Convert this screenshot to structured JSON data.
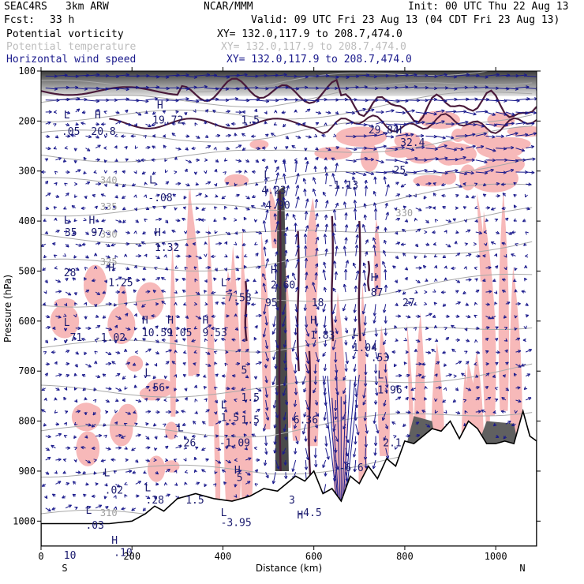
{
  "header": {
    "project": "SEAC4RS",
    "model": "3km ARW",
    "org": "NCAR/MMM",
    "init": "Init: 00 UTC Thu 22 Aug 13",
    "fcst_label": "Fcst:",
    "fcst_value": "33 h",
    "valid": "Valid: 09 UTC Fri 23 Aug 13 (04 CDT Fri 23 Aug 13)"
  },
  "legend": [
    {
      "label": "Potential vorticity",
      "xy": "XY= 132.0,117.9 to 208.7,474.0",
      "color": "#000000"
    },
    {
      "label": "Potential temperature",
      "xy": "XY= 132.0,117.9 to 208.7,474.0",
      "color": "#bdbdbd"
    },
    {
      "label": "Horizontal wind speed",
      "xy": "XY= 132.0,117.9 to 208.7,474.0",
      "color": "#1a1a8c"
    }
  ],
  "chart_data": {
    "type": "cross-section",
    "xlabel": "Distance (km)",
    "ylabel": "Pressure (hPa)",
    "xlim": [
      0,
      1090
    ],
    "ylim": [
      1050,
      100
    ],
    "x_ticks": [
      0,
      200,
      400,
      600,
      800,
      1000
    ],
    "y_ticks": [
      100,
      200,
      300,
      400,
      500,
      600,
      700,
      800,
      900,
      1000
    ],
    "x_end_labels": {
      "left": "S",
      "right": "N"
    },
    "colors": {
      "pv_shade": "#f7b9b9",
      "wind": "#1a1a8c",
      "theta": "#a8a8a8",
      "terrain": "#000000"
    },
    "theta_contours": [
      {
        "label": "340",
        "x": 130,
        "p": 325
      },
      {
        "label": "335",
        "x": 130,
        "p": 378
      },
      {
        "label": "330",
        "x": 130,
        "p": 433
      },
      {
        "label": "330",
        "x": 780,
        "p": 390
      },
      {
        "label": "325",
        "x": 130,
        "p": 488
      },
      {
        "label": "310",
        "x": 130,
        "p": 990
      }
    ],
    "field_labels": [
      {
        "t": "L",
        "x": 50,
        "p": 195
      },
      {
        "t": ".05",
        "x": 45,
        "p": 228
      },
      {
        "t": "H",
        "x": 118,
        "p": 195
      },
      {
        "t": "20.8",
        "x": 110,
        "p": 228
      },
      {
        "t": "H",
        "x": 255,
        "p": 175
      },
      {
        "t": "19.72",
        "x": 245,
        "p": 205
      },
      {
        "t": "1.5",
        "x": 440,
        "p": 205
      },
      {
        "t": "L",
        "x": 238,
        "p": 325
      },
      {
        "t": "-.08",
        "x": 235,
        "p": 360
      },
      {
        "t": "L",
        "x": 490,
        "p": 315
      },
      {
        "t": "4.23",
        "x": 485,
        "p": 345
      },
      {
        "t": "-4.90",
        "x": 480,
        "p": 375
      },
      {
        "t": "-1.13",
        "x": 630,
        "p": 335
      },
      {
        "t": "29.84",
        "x": 720,
        "p": 225
      },
      {
        "t": "H",
        "x": 780,
        "p": 225
      },
      {
        "t": "32.4",
        "x": 790,
        "p": 250
      },
      {
        "t": "25",
        "x": 775,
        "p": 305
      },
      {
        "t": "L",
        "x": 50,
        "p": 405
      },
      {
        "t": "35",
        "x": 52,
        "p": 430
      },
      {
        "t": "H",
        "x": 105,
        "p": 405
      },
      {
        "t": "97",
        "x": 110,
        "p": 430
      },
      {
        "t": "H",
        "x": 250,
        "p": 430
      },
      {
        "t": "1.32",
        "x": 250,
        "p": 460
      },
      {
        "t": "28",
        "x": 50,
        "p": 510
      },
      {
        "t": "H",
        "x": 148,
        "p": 500
      },
      {
        "t": "1.25",
        "x": 148,
        "p": 530
      },
      {
        "t": "L",
        "x": 395,
        "p": 530
      },
      {
        "t": "-7.58",
        "x": 395,
        "p": 560
      },
      {
        "t": "H",
        "x": 505,
        "p": 505
      },
      {
        "t": "2.60",
        "x": 505,
        "p": 535
      },
      {
        "t": "95",
        "x": 493,
        "p": 570
      },
      {
        "t": "H",
        "x": 725,
        "p": 520
      },
      {
        "t": "87",
        "x": 725,
        "p": 550
      },
      {
        "t": "18",
        "x": 595,
        "p": 570
      },
      {
        "t": "27",
        "x": 795,
        "p": 570
      },
      {
        "t": "L",
        "x": 50,
        "p": 610
      },
      {
        "t": ".71",
        "x": 50,
        "p": 640
      },
      {
        "t": "-1.02",
        "x": 118,
        "p": 640
      },
      {
        "t": "H",
        "x": 222,
        "p": 605
      },
      {
        "t": "10.59",
        "x": 222,
        "p": 630
      },
      {
        "t": "H",
        "x": 278,
        "p": 605
      },
      {
        "t": "1.05",
        "x": 278,
        "p": 630
      },
      {
        "t": "H",
        "x": 355,
        "p": 605
      },
      {
        "t": "9.53",
        "x": 355,
        "p": 630
      },
      {
        "t": "H",
        "x": 592,
        "p": 605
      },
      {
        "t": "1.83",
        "x": 592,
        "p": 635
      },
      {
        "t": "L",
        "x": 685,
        "p": 630
      },
      {
        "t": "1.04",
        "x": 685,
        "p": 660
      },
      {
        "t": ".53",
        "x": 725,
        "p": 680
      },
      {
        "t": "L",
        "x": 228,
        "p": 710
      },
      {
        "t": ".56",
        "x": 232,
        "p": 740
      },
      {
        "t": "L",
        "x": 740,
        "p": 715
      },
      {
        "t": "1.96",
        "x": 740,
        "p": 745
      },
      {
        "t": "5",
        "x": 440,
        "p": 705
      },
      {
        "t": "1.5",
        "x": 440,
        "p": 760
      },
      {
        "t": "L",
        "x": 395,
        "p": 775
      },
      {
        "t": "1.5",
        "x": 395,
        "p": 800
      },
      {
        "t": "1.5",
        "x": 440,
        "p": 805
      },
      {
        "t": "L",
        "x": 300,
        "p": 820
      },
      {
        "t": ".26",
        "x": 300,
        "p": 850
      },
      {
        "t": "-1.09",
        "x": 392,
        "p": 850
      },
      {
        "t": "6.36",
        "x": 555,
        "p": 805
      },
      {
        "t": "-6.6",
        "x": 655,
        "p": 900
      },
      {
        "t": "2.1",
        "x": 752,
        "p": 850
      },
      {
        "t": "H",
        "x": 425,
        "p": 905
      },
      {
        "t": "5",
        "x": 430,
        "p": 920
      },
      {
        "t": "L",
        "x": 138,
        "p": 910
      },
      {
        "t": ".02",
        "x": 140,
        "p": 945
      },
      {
        "t": "L",
        "x": 228,
        "p": 940
      },
      {
        "t": ".28",
        "x": 230,
        "p": 965
      },
      {
        "t": "1.5",
        "x": 318,
        "p": 965
      },
      {
        "t": "L",
        "x": 98,
        "p": 985
      },
      {
        "t": ".03",
        "x": 98,
        "p": 1015
      },
      {
        "t": "L",
        "x": 395,
        "p": 990
      },
      {
        "t": "-3.95",
        "x": 395,
        "p": 1010
      },
      {
        "t": "3",
        "x": 545,
        "p": 965
      },
      {
        "t": "-4.5",
        "x": 563,
        "p": 990
      },
      {
        "t": "H",
        "x": 563,
        "p": 995
      },
      {
        "t": "H",
        "x": 155,
        "p": 1045
      },
      {
        "t": ".10",
        "x": 160,
        "p": 1070
      },
      {
        "t": "10",
        "x": 50,
        "p": 1075
      }
    ]
  }
}
